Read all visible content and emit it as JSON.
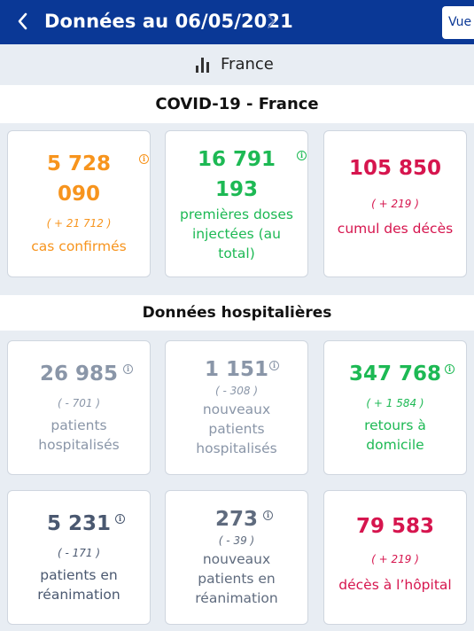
{
  "header": {
    "title": "Données au 06/05/2021",
    "prev_icon": "chevron-left-icon",
    "next_icon": "chevron-right-icon",
    "view_button_label": "Vue e"
  },
  "filter": {
    "icon": "bar-chart-icon",
    "label": "France"
  },
  "sections": [
    {
      "title": "COVID-19 - France",
      "cards": [
        {
          "value_line1": "5 728",
          "value_line2": "090",
          "delta": "( + 21 712 )",
          "label_line1": "cas confirmés",
          "color": "#f7941d"
        },
        {
          "value_line1": "16 791",
          "value_line2": "193",
          "label_line1": "premières doses",
          "label_line2": "injectées (au",
          "label_line3": "total)",
          "color": "#1db954"
        },
        {
          "value_line1": "105 850",
          "delta": "( + 219 )",
          "label_line1": "cumul des décès",
          "color": "#d6154e"
        }
      ]
    },
    {
      "title": "Données hospitalières",
      "cards": [
        {
          "value_line1": "26 985",
          "delta": "( - 701 )",
          "label_line1": "patients",
          "label_line2": "hospitalisés",
          "color": "#8a96a8"
        },
        {
          "value_line1": "1 151",
          "delta": "( - 308 )",
          "label_line1": "nouveaux",
          "label_line2": "patients",
          "label_line3": "hospitalisés",
          "color": "#8a96a8"
        },
        {
          "value_line1": "347 768",
          "delta": "( + 1 584 )",
          "label_line1": "retours à",
          "label_line2": "domicile",
          "color": "#1db954"
        },
        {
          "value_line1": "5 231",
          "delta": "( - 171 )",
          "label_line1": "patients en",
          "label_line2": "réanimation",
          "color": "#4a5870"
        },
        {
          "value_line1": "273",
          "delta": "( - 39 )",
          "label_line1": "nouveaux",
          "label_line2": "patients en",
          "label_line3": "réanimation",
          "color": "#5f6b7e"
        },
        {
          "value_line1": "79 583",
          "delta": "( + 219 )",
          "label_line1": "décès à l’hôpital",
          "color": "#d6154e"
        }
      ]
    }
  ],
  "info_glyph": "i"
}
